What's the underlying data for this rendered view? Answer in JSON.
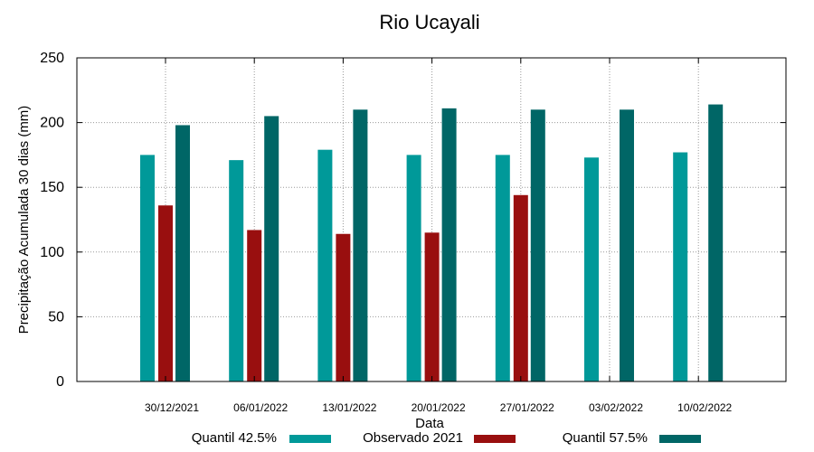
{
  "chart_data": {
    "type": "bar",
    "title": "Rio Ucayali",
    "xlabel": "Data",
    "ylabel": "Precipitação Acumulada 30 dias (mm)",
    "ylim": [
      0,
      250
    ],
    "yticks": [
      0,
      50,
      100,
      150,
      200,
      250
    ],
    "grid": true,
    "legend_position": "bottom",
    "categories": [
      "30/12/2021",
      "06/01/2022",
      "13/01/2022",
      "20/01/2022",
      "27/01/2022",
      "03/02/2022",
      "10/02/2022"
    ],
    "series": [
      {
        "name": "Quantil 42.5%",
        "color": "#009999",
        "values": [
          175,
          171,
          179,
          175,
          175,
          173,
          177
        ]
      },
      {
        "name": "Observado 2021",
        "color": "#990f0f",
        "values": [
          136,
          117,
          114,
          115,
          144,
          null,
          null
        ]
      },
      {
        "name": "Quantil 57.5%",
        "color": "#006666",
        "values": [
          198,
          205,
          210,
          211,
          210,
          210,
          214
        ]
      }
    ]
  }
}
